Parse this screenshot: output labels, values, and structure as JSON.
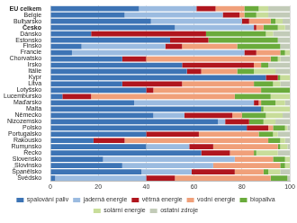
{
  "chart_data": {
    "type": "bar",
    "orientation": "horizontal",
    "stacked": true,
    "grid": true,
    "legend": "bottom",
    "data_labels": false,
    "categories": [
      "EU celkem",
      "Belgie",
      "Bulharsko",
      "Česko",
      "Dánsko",
      "Estonsko",
      "Finsko",
      "Francie",
      "Chorvatsko",
      "Irsko",
      "Itálie",
      "Kypr",
      "Litva",
      "Lotyšsko",
      "Lucembursko",
      "Maďarsko",
      "Malta",
      "Německo",
      "Nizozemsko",
      "Polsko",
      "Portugalsko",
      "Rakousko",
      "Rumunsko",
      "Řecko",
      "Slovensko",
      "Slovinsko",
      "Španělsko",
      "Švédsko"
    ],
    "xlim": [
      0,
      100
    ],
    "xticks": [
      0,
      20,
      40,
      60,
      80,
      100
    ],
    "series": [
      {
        "name": "spalování paliv",
        "color": "#3d74b5",
        "values": [
          37,
          31,
          42,
          52,
          17,
          50,
          13,
          9,
          30,
          55,
          57,
          90,
          30,
          40,
          5,
          35,
          88,
          43,
          70,
          82,
          40,
          18,
          40,
          63,
          22,
          30,
          38,
          2
        ]
      },
      {
        "name": "jaderná energie",
        "color": "#9bbbe0",
        "values": [
          24,
          41,
          38,
          33,
          0,
          0,
          35,
          72,
          0,
          0,
          0,
          0,
          0,
          0,
          0,
          50,
          0,
          13,
          3,
          0,
          0,
          0,
          18,
          0,
          55,
          38,
          21,
          38
        ]
      },
      {
        "name": "větrná energie",
        "color": "#b0161e",
        "values": [
          8,
          7,
          3,
          1,
          48,
          16,
          7,
          5,
          10,
          30,
          6,
          5,
          25,
          3,
          12,
          2,
          0,
          20,
          10,
          9,
          22,
          13,
          10,
          12,
          0,
          0,
          18,
          12
        ]
      },
      {
        "name": "vodní energie",
        "color": "#f0a07a",
        "values": [
          12,
          2,
          9,
          3,
          0,
          0,
          23,
          10,
          52,
          3,
          15,
          0,
          30,
          45,
          60,
          1,
          0,
          4,
          0,
          2,
          25,
          60,
          27,
          10,
          16,
          28,
          12,
          40
        ]
      },
      {
        "name": "biopaliva",
        "color": "#6aab3c",
        "values": [
          6,
          5,
          2,
          6,
          25,
          29,
          18,
          2,
          3,
          3,
          7,
          1,
          8,
          12,
          15,
          6,
          1,
          10,
          6,
          5,
          6,
          5,
          1,
          1,
          5,
          2,
          2,
          7
        ]
      },
      {
        "name": "solární energie",
        "color": "#c8dd9a",
        "values": [
          4,
          5,
          3,
          3,
          3,
          0,
          0,
          2,
          1,
          0,
          9,
          4,
          3,
          0,
          8,
          4,
          11,
          7,
          5,
          1,
          2,
          2,
          3,
          9,
          2,
          2,
          5,
          0
        ]
      },
      {
        "name": "ostatní zdroje",
        "color": "#c2cbb8",
        "values": [
          9,
          9,
          3,
          2,
          7,
          5,
          4,
          0,
          4,
          9,
          6,
          0,
          4,
          0,
          0,
          2,
          0,
          3,
          6,
          1,
          5,
          2,
          1,
          5,
          0,
          0,
          4,
          1
        ]
      }
    ]
  }
}
